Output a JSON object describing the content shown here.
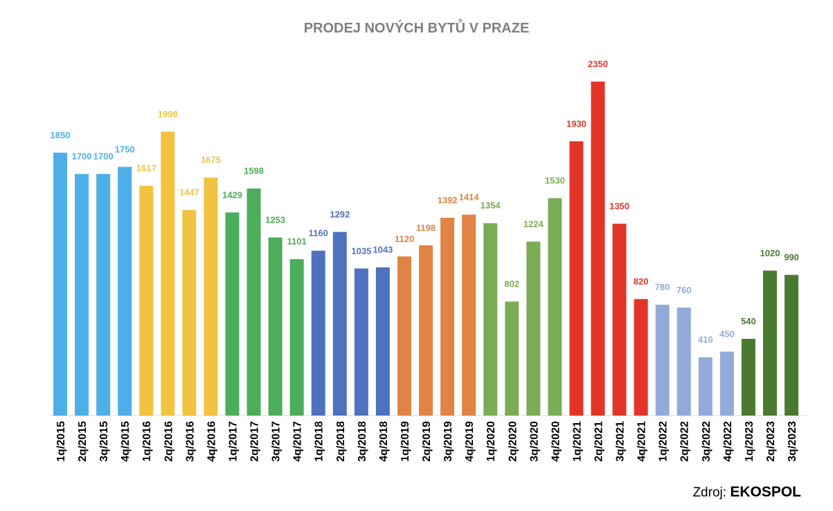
{
  "chart_data": {
    "type": "bar",
    "title": "PRODEJ NOVÝCH BYTŮ V PRAZE",
    "xlabel": "",
    "ylabel": "",
    "ylim": [
      0,
      2400
    ],
    "grid": false,
    "legend": "none",
    "categories": [
      "1q/2015",
      "2q/2015",
      "3q/2015",
      "4q/2015",
      "1q/2016",
      "2q/2016",
      "3q/2016",
      "4q/2016",
      "1q/2017",
      "2q/2017",
      "3q/2017",
      "4q/2017",
      "1q/2018",
      "2q/2018",
      "3q/2018",
      "4q/2018",
      "1q/2019",
      "2q/2019",
      "3q/2019",
      "4q/2019",
      "1q/2020",
      "2q/2020",
      "3q/2020",
      "4q/2020",
      "1q/2021",
      "2q/2021",
      "3q/2021",
      "4q/2021",
      "1q/2022",
      "2q/2022",
      "3q/2022",
      "4q/2022",
      "1q/2023",
      "2q/2023",
      "3q/2023"
    ],
    "values": [
      1850,
      1700,
      1700,
      1750,
      1617,
      1998,
      1447,
      1675,
      1429,
      1598,
      1253,
      1101,
      1160,
      1292,
      1035,
      1043,
      1120,
      1198,
      1392,
      1414,
      1354,
      802,
      1224,
      1530,
      1930,
      2350,
      1350,
      820,
      780,
      760,
      410,
      450,
      540,
      1020,
      990
    ],
    "year_colors": {
      "2015": "#4eaee8",
      "2016": "#f2c341",
      "2017": "#4cad5a",
      "2018": "#4f72be",
      "2019": "#e08344",
      "2020": "#7bac56",
      "2021": "#e3342a",
      "2022": "#92aad9",
      "2023": "#4a7a30"
    }
  },
  "source": {
    "prefix": "Zdroj:",
    "name": "EKOSPOL"
  }
}
